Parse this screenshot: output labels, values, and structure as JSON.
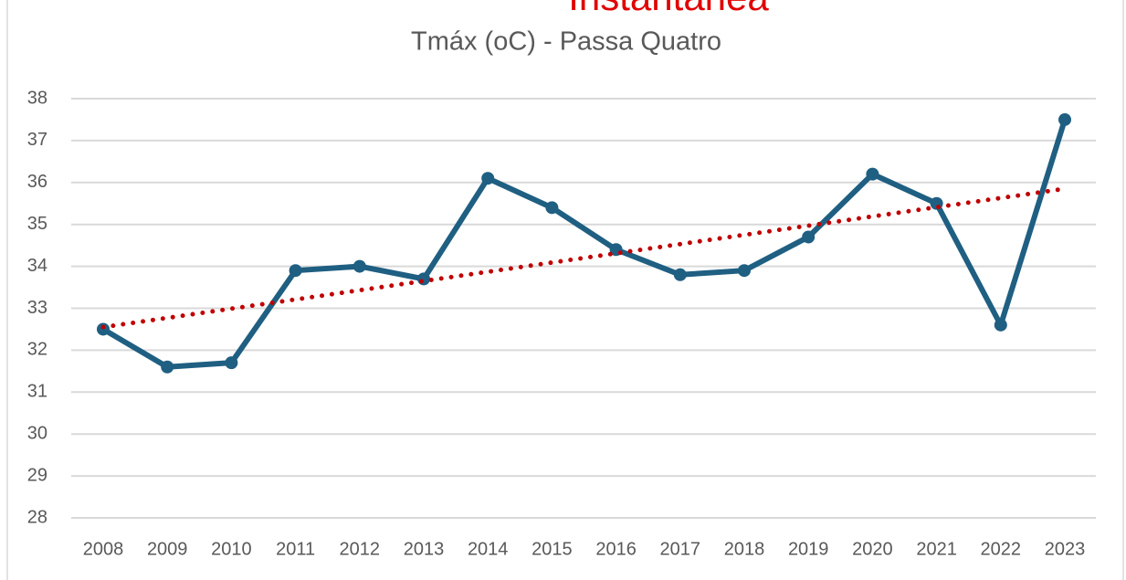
{
  "chart_data": {
    "type": "line",
    "title": "Tmáx (oC) - Passa Quatro",
    "annotation": "Instantânea",
    "categories": [
      "2008",
      "2009",
      "2010",
      "2011",
      "2012",
      "2013",
      "2014",
      "2015",
      "2016",
      "2017",
      "2018",
      "2019",
      "2020",
      "2021",
      "2022",
      "2023"
    ],
    "series": [
      {
        "color": "#1f5f82",
        "values": [
          32.5,
          31.6,
          31.7,
          33.9,
          34.0,
          33.7,
          36.1,
          35.4,
          34.4,
          33.8,
          33.9,
          34.7,
          36.2,
          35.5,
          32.6,
          37.5
        ]
      }
    ],
    "trendline": {
      "color": "#c00000",
      "values": [
        32.55,
        35.85
      ]
    },
    "ylim": [
      28,
      38
    ],
    "yticks": [
      28,
      29,
      30,
      31,
      32,
      33,
      34,
      35,
      36,
      37,
      38
    ],
    "grid": true
  }
}
